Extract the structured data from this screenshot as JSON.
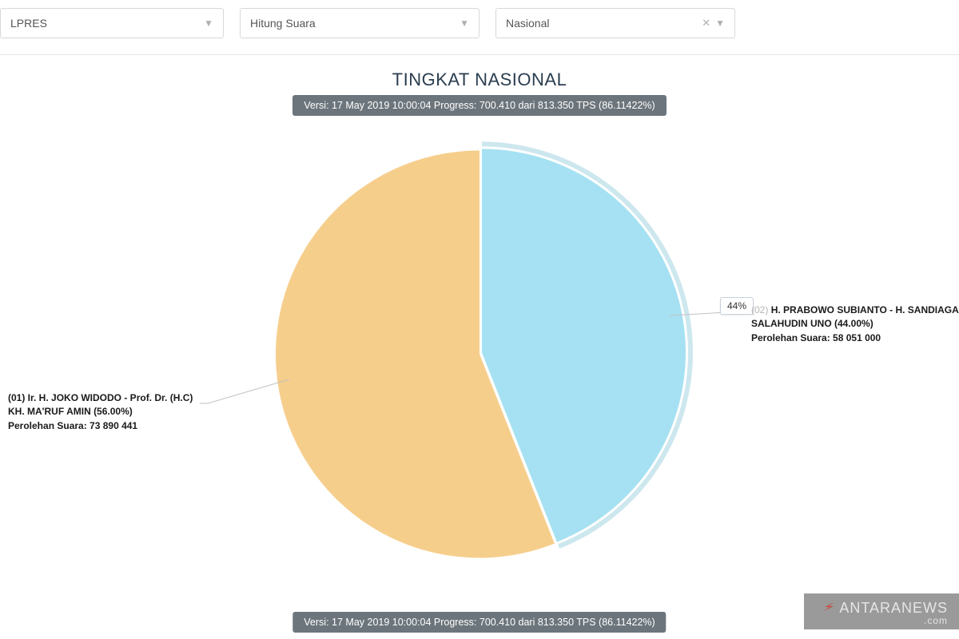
{
  "filters": {
    "election_type": "LPRES",
    "count_type": "Hitung Suara",
    "region": "Nasional"
  },
  "title": "TINGKAT NASIONAL",
  "version_text": "Versi: 17 May 2019 10:00:04 Progress: 700.410 dari 813.350 TPS (86.11422%)",
  "chart": {
    "type": "pie",
    "radius": 255,
    "background": "#ffffff",
    "slices": [
      {
        "id": "01",
        "percent": 56.0,
        "color": "#f6ce8c",
        "label_lines": [
          "(01) Ir. H. JOKO WIDODO - Prof. Dr. (H.C)",
          "KH. MA'RUF AMIN (56.00%)",
          "Perolehan Suara: 73 890 441"
        ]
      },
      {
        "id": "02",
        "percent": 44.0,
        "color": "#a5e1f2",
        "highlight_stroke": "#6fb9cf",
        "tooltip": "44%",
        "label_lines": [
          "H. PRABOWO SUBIANTO - H. SANDIAGA",
          "SALAHUDIN UNO (44.00%)",
          "Perolehan Suara: 58 051 000"
        ],
        "label_prefix_muted": "(02)"
      }
    ]
  },
  "watermark": {
    "brand": "ANTARANEWS",
    "suffix": ".com",
    "arrow_color": "#c84b3f",
    "bg": "#9a9a9a"
  }
}
